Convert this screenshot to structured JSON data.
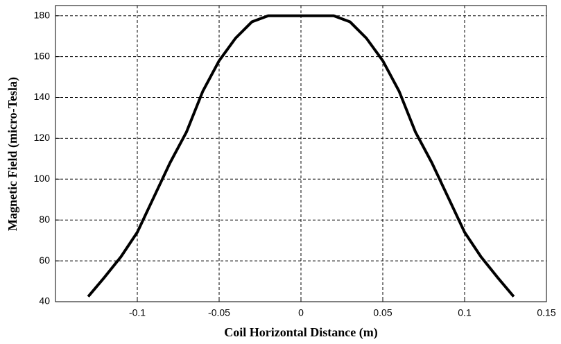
{
  "chart_data": {
    "type": "line",
    "x_label": "Coil Horizontal Distance (m)",
    "y_label": "Magnetic Field (micro-Tesla)",
    "x": [
      -0.13,
      -0.12,
      -0.11,
      -0.1,
      -0.09,
      -0.08,
      -0.07,
      -0.06,
      -0.05,
      -0.04,
      -0.03,
      -0.02,
      -0.01,
      0,
      0.01,
      0.02,
      0.03,
      0.04,
      0.05,
      0.06,
      0.07,
      0.08,
      0.09,
      0.1,
      0.11,
      0.12,
      0.13
    ],
    "series": [
      {
        "color": "#000000",
        "values": [
          42.5,
          52,
          62,
          74,
          91,
          108,
          123,
          143,
          158,
          169,
          177,
          180,
          180,
          180,
          180,
          180,
          177,
          169,
          158,
          143,
          123,
          108,
          91,
          74,
          62,
          52,
          42.5
        ]
      }
    ],
    "xlim": [
      -0.15,
      0.15
    ],
    "xticks": [
      -0.1,
      -0.05,
      0,
      0.05,
      0.1,
      0.15
    ],
    "ylim": [
      40,
      185
    ],
    "yticks": [
      40,
      60,
      80,
      100,
      120,
      140,
      160,
      180
    ],
    "grid": true
  }
}
